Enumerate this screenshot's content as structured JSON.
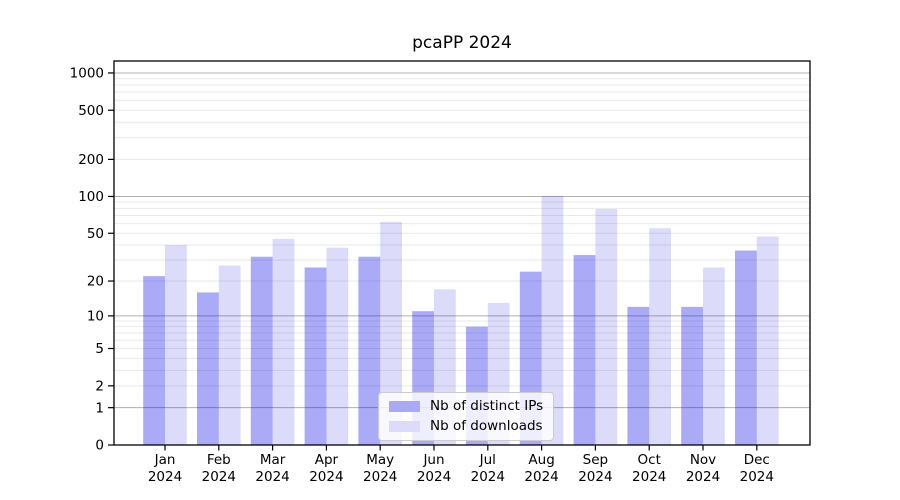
{
  "title": "pcaPP 2024",
  "legend": {
    "items": [
      {
        "label": "Nb of distinct IPs",
        "swatch": "#a9a9f4",
        "fill": "rgba(5,5,232,0.34)"
      },
      {
        "label": "Nb of downloads",
        "swatch": "#dcdcfa",
        "fill": "rgba(5,5,219,0.14)"
      }
    ]
  },
  "chart_data": {
    "type": "bar",
    "title": "pcaPP 2024",
    "categories": [
      "Jan",
      "Feb",
      "Mar",
      "Apr",
      "May",
      "Jun",
      "Jul",
      "Aug",
      "Sep",
      "Oct",
      "Nov",
      "Dec"
    ],
    "x_sub_label": "2024",
    "series": [
      {
        "name": "Nb of distinct IPs",
        "color": "rgba(5,5,232,0.34)",
        "values": [
          22,
          16,
          32,
          26,
          32,
          11,
          8,
          24,
          33,
          12,
          12,
          36
        ]
      },
      {
        "name": "Nb of downloads",
        "color": "rgba(5,5,219,0.14)",
        "values": [
          40,
          27,
          45,
          38,
          62,
          17,
          13,
          101,
          79,
          55,
          26,
          47
        ]
      }
    ],
    "y_scale": "log1p",
    "ylim": [
      0,
      1250
    ],
    "y_ticks": [
      0,
      1,
      2,
      5,
      10,
      20,
      50,
      100,
      200,
      500,
      1000
    ],
    "grid": {
      "major": [
        1,
        10,
        100,
        1000
      ],
      "minor": [
        2,
        3,
        4,
        5,
        6,
        7,
        8,
        9,
        20,
        30,
        40,
        50,
        60,
        70,
        80,
        90,
        200,
        300,
        400,
        500,
        600,
        700,
        800,
        900
      ],
      "major_color": "#b0b0b0",
      "minor_color": "#e9e9e9"
    },
    "legend_position": "lower center",
    "xlabel": "",
    "ylabel": ""
  }
}
